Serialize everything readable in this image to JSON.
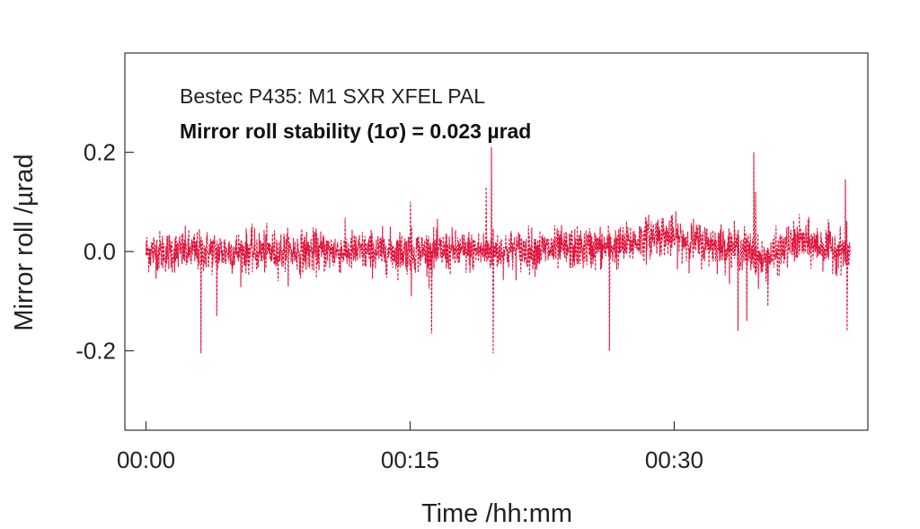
{
  "chart_data": {
    "type": "line",
    "title": "",
    "xlabel": "Time /hh:mm",
    "ylabel": "Mirror roll /µrad",
    "annotation_line1": "Bestec P435: M1 SXR XFEL PAL",
    "annotation_line2": "Mirror roll stability (1σ) = 0.023 µrad",
    "xlim": [
      -1.2,
      41.0
    ],
    "ylim": [
      -0.36,
      0.4
    ],
    "x_ticks": [
      {
        "value": 0,
        "label": "00:00"
      },
      {
        "value": 15,
        "label": "00:15"
      },
      {
        "value": 30,
        "label": "00:30"
      }
    ],
    "y_ticks": [
      {
        "value": 0.2,
        "label": "0.2"
      },
      {
        "value": 0.0,
        "label": "0.0"
      },
      {
        "value": -0.2,
        "label": "-0.2"
      }
    ],
    "grid": false,
    "series": [
      {
        "color": "#e0123a",
        "line_style": "dashed",
        "x_range": [
          0,
          40
        ],
        "band_center": [
          [
            0,
            0.0
          ],
          [
            14,
            0.0
          ],
          [
            18,
            0.0
          ],
          [
            24,
            0.005
          ],
          [
            27,
            0.01
          ],
          [
            29,
            0.035
          ],
          [
            31,
            0.02
          ],
          [
            34,
            0.005
          ],
          [
            35,
            -0.02
          ],
          [
            37,
            0.02
          ],
          [
            40,
            0.0
          ]
        ],
        "noise_sigma": 0.023,
        "spikes": [
          {
            "x": 3.1,
            "y": -0.205
          },
          {
            "x": 4.0,
            "y": -0.13
          },
          {
            "x": 15.0,
            "y": 0.1
          },
          {
            "x": 15.05,
            "y": -0.09
          },
          {
            "x": 16.2,
            "y": -0.165
          },
          {
            "x": 19.6,
            "y": 0.21
          },
          {
            "x": 19.7,
            "y": -0.205
          },
          {
            "x": 19.3,
            "y": 0.13
          },
          {
            "x": 26.3,
            "y": -0.2
          },
          {
            "x": 33.6,
            "y": -0.16
          },
          {
            "x": 34.1,
            "y": -0.14
          },
          {
            "x": 34.5,
            "y": 0.2
          },
          {
            "x": 34.6,
            "y": 0.12
          },
          {
            "x": 35.3,
            "y": -0.11
          },
          {
            "x": 39.7,
            "y": 0.145
          },
          {
            "x": 39.8,
            "y": -0.16
          }
        ]
      }
    ]
  }
}
